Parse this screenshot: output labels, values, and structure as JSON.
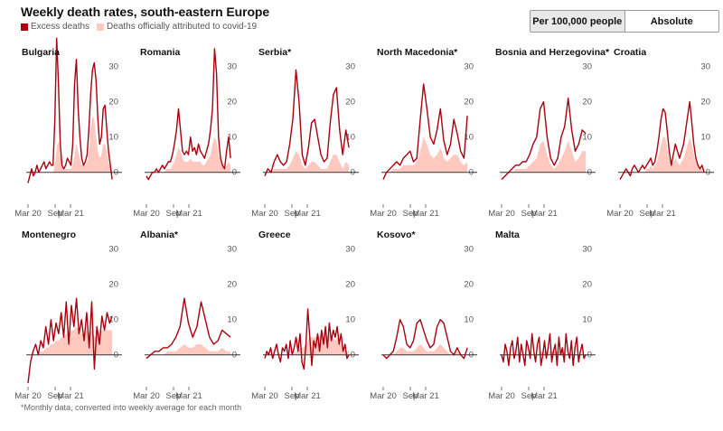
{
  "header": {
    "title": "Weekly death rates, south-eastern Europe",
    "legend": [
      {
        "label": "Excess deaths",
        "color": "#a8000e"
      },
      {
        "label": "Deaths officially attributed to covid-19",
        "color": "#ffc9c0"
      }
    ]
  },
  "toggle": {
    "options": [
      "Per 100,000 people",
      "Absolute"
    ],
    "selected": "Per 100,000 people"
  },
  "footnote": "*Monthly data, converted into weekly average for each month",
  "colors": {
    "excess": "#a8000e",
    "covid": "#ffc9c0",
    "axis": "#333333",
    "tick": "#555555"
  },
  "chart_data": [
    {
      "type": "line",
      "title": "Bulgaria",
      "x_ticks": [
        "Mar 20",
        "Sep",
        "Mar 21"
      ],
      "y_ticks": [
        0,
        10,
        20,
        30
      ],
      "ylim": [
        -8,
        35
      ],
      "series": [
        {
          "name": "Excess deaths",
          "values": [
            -3,
            -1,
            1,
            -1,
            0,
            2,
            0,
            1,
            2,
            3,
            1,
            2,
            3,
            2,
            2,
            15,
            38,
            25,
            8,
            2,
            1,
            2,
            4,
            3,
            2,
            8,
            25,
            32,
            18,
            10,
            4,
            2,
            3,
            5,
            12,
            22,
            29,
            31,
            26,
            15,
            8,
            10,
            18,
            19,
            12,
            6,
            2,
            -2
          ]
        },
        {
          "name": "Deaths officially attributed to covid-19",
          "values": [
            0,
            0,
            0,
            0,
            0,
            0,
            0,
            0,
            0,
            0,
            0,
            0,
            0,
            0,
            0,
            2,
            7,
            9,
            5,
            2,
            1,
            1,
            1,
            1,
            1,
            2,
            5,
            8,
            6,
            4,
            2,
            2,
            2,
            3,
            6,
            12,
            16,
            15,
            10,
            6,
            4,
            5,
            8,
            8,
            6,
            3,
            1,
            0
          ]
        }
      ]
    },
    {
      "type": "line",
      "title": "Romania",
      "x_ticks": [
        "Mar 20",
        "Sep",
        "Mar 21"
      ],
      "y_ticks": [
        0,
        10,
        20,
        30
      ],
      "ylim": [
        -8,
        35
      ],
      "series": [
        {
          "name": "Excess deaths",
          "values": [
            -1,
            -2,
            -1,
            0,
            0,
            1,
            0,
            1,
            2,
            1,
            2,
            3,
            3,
            5,
            8,
            12,
            18,
            12,
            6,
            5,
            6,
            5,
            10,
            6,
            7,
            5,
            8,
            6,
            5,
            4,
            6,
            8,
            12,
            18,
            35,
            28,
            10,
            4,
            2,
            1,
            6,
            10,
            4
          ]
        },
        {
          "name": "Deaths officially attributed to covid-19",
          "values": [
            0,
            0,
            0,
            0,
            0,
            0,
            0,
            0,
            0,
            0,
            1,
            1,
            1,
            2,
            3,
            5,
            7,
            6,
            4,
            3,
            3,
            3,
            4,
            3,
            3,
            3,
            3,
            3,
            2,
            2,
            3,
            4,
            5,
            8,
            10,
            9,
            5,
            3,
            2,
            1,
            2,
            3,
            2
          ]
        }
      ]
    },
    {
      "type": "line",
      "title": "Serbia*",
      "x_ticks": [
        "Mar 20",
        "Sep",
        "Mar 21"
      ],
      "y_ticks": [
        0,
        10,
        20,
        30
      ],
      "ylim": [
        -8,
        35
      ],
      "series": [
        {
          "name": "Excess deaths",
          "values": [
            -1,
            1,
            0,
            3,
            5,
            3,
            2,
            3,
            8,
            15,
            29,
            20,
            5,
            2,
            7,
            14,
            15,
            10,
            5,
            3,
            4,
            14,
            22,
            24,
            12,
            5,
            12,
            7
          ]
        },
        {
          "name": "Deaths officially attributed to covid-19",
          "values": [
            0,
            0,
            0,
            1,
            1,
            1,
            1,
            1,
            2,
            4,
            6,
            5,
            2,
            1,
            2,
            3,
            3,
            2,
            1,
            1,
            1,
            3,
            5,
            5,
            3,
            1,
            3,
            2
          ]
        }
      ]
    },
    {
      "type": "line",
      "title": "North Macedonia*",
      "x_ticks": [
        "Mar 20",
        "Sep",
        "Mar 21"
      ],
      "y_ticks": [
        0,
        10,
        20,
        30
      ],
      "ylim": [
        -8,
        35
      ],
      "series": [
        {
          "name": "Excess deaths",
          "values": [
            -2,
            0,
            1,
            2,
            3,
            2,
            4,
            5,
            6,
            3,
            4,
            15,
            25,
            18,
            10,
            8,
            12,
            18,
            9,
            5,
            8,
            15,
            11,
            6,
            4,
            16
          ]
        },
        {
          "name": "Deaths officially attributed to covid-19",
          "values": [
            0,
            0,
            0,
            1,
            1,
            1,
            2,
            2,
            2,
            2,
            3,
            6,
            10,
            8,
            5,
            4,
            5,
            7,
            4,
            3,
            4,
            5,
            5,
            3,
            2,
            3
          ]
        }
      ]
    },
    {
      "type": "line",
      "title": "Bosnia and Herzegovina*",
      "x_ticks": [
        "Mar 20",
        "Sep",
        "Mar 21"
      ],
      "y_ticks": [
        0,
        10,
        20,
        30
      ],
      "ylim": [
        -8,
        35
      ],
      "series": [
        {
          "name": "Excess deaths",
          "values": [
            -2,
            -1,
            0,
            1,
            2,
            2,
            3,
            3,
            5,
            8,
            10,
            18,
            20,
            10,
            4,
            2,
            4,
            10,
            13,
            21,
            12,
            6,
            8,
            12,
            11
          ]
        },
        {
          "name": "Deaths officially attributed to covid-19",
          "values": [
            0,
            0,
            0,
            0,
            1,
            1,
            1,
            1,
            2,
            3,
            4,
            8,
            9,
            5,
            2,
            1,
            2,
            4,
            6,
            9,
            6,
            3,
            4,
            6,
            6
          ]
        }
      ]
    },
    {
      "type": "line",
      "title": "Croatia",
      "x_ticks": [
        "Mar 20",
        "Sep",
        "Mar 21"
      ],
      "y_ticks": [
        0,
        10,
        20,
        30
      ],
      "ylim": [
        -8,
        35
      ],
      "series": [
        {
          "name": "Excess deaths",
          "values": [
            -2,
            -1,
            0,
            1,
            0,
            -1,
            1,
            2,
            1,
            0,
            1,
            2,
            1,
            2,
            3,
            4,
            2,
            3,
            6,
            10,
            15,
            18,
            17,
            12,
            6,
            2,
            5,
            8,
            6,
            4,
            6,
            8,
            12,
            16,
            20,
            14,
            8,
            4,
            2,
            1,
            2,
            0
          ]
        },
        {
          "name": "Deaths officially attributed to covid-19",
          "values": [
            0,
            0,
            0,
            0,
            0,
            0,
            0,
            0,
            0,
            0,
            0,
            0,
            0,
            1,
            1,
            2,
            1,
            2,
            3,
            5,
            8,
            10,
            10,
            7,
            4,
            2,
            3,
            4,
            3,
            2,
            3,
            4,
            6,
            8,
            10,
            8,
            5,
            3,
            2,
            1,
            1,
            0
          ]
        }
      ]
    },
    {
      "type": "line",
      "title": "Montenegro",
      "x_ticks": [
        "Mar 20",
        "Sep",
        "Mar 21"
      ],
      "y_ticks": [
        0,
        10,
        20,
        30
      ],
      "ylim": [
        -8,
        35
      ],
      "series": [
        {
          "name": "Excess deaths",
          "values": [
            -8,
            -2,
            1,
            3,
            0,
            4,
            2,
            8,
            3,
            10,
            4,
            9,
            6,
            12,
            5,
            15,
            3,
            14,
            8,
            16,
            6,
            10,
            4,
            12,
            2,
            15,
            -4,
            8,
            3,
            11,
            7,
            12,
            9,
            11
          ]
        },
        {
          "name": "Deaths officially attributed to covid-19",
          "values": [
            0,
            0,
            0,
            0,
            0,
            1,
            1,
            2,
            2,
            3,
            3,
            4,
            4,
            5,
            5,
            6,
            6,
            7,
            7,
            8,
            7,
            6,
            6,
            7,
            6,
            7,
            5,
            6,
            6,
            7,
            7,
            7,
            7,
            7
          ]
        }
      ]
    },
    {
      "type": "line",
      "title": "Albania*",
      "x_ticks": [
        "Mar 20",
        "Sep",
        "Mar 21"
      ],
      "y_ticks": [
        0,
        10,
        20,
        30
      ],
      "ylim": [
        -8,
        35
      ],
      "series": [
        {
          "name": "Excess deaths",
          "values": [
            -1,
            0,
            1,
            1,
            2,
            2,
            3,
            5,
            8,
            16,
            9,
            5,
            8,
            15,
            10,
            5,
            3,
            4,
            7,
            6,
            5
          ]
        },
        {
          "name": "Deaths officially attributed to covid-19",
          "values": [
            0,
            0,
            0,
            0,
            0,
            1,
            1,
            1,
            2,
            3,
            2,
            2,
            3,
            3,
            2,
            1,
            1,
            1,
            2,
            1,
            1
          ]
        }
      ]
    },
    {
      "type": "line",
      "title": "Greece",
      "x_ticks": [
        "Mar 20",
        "Sep",
        "Mar 21"
      ],
      "y_ticks": [
        0,
        10,
        20,
        30
      ],
      "ylim": [
        -8,
        35
      ],
      "series": [
        {
          "name": "Excess deaths",
          "values": [
            -1,
            1,
            0,
            2,
            -1,
            1,
            3,
            0,
            -2,
            2,
            1,
            3,
            -1,
            4,
            0,
            2,
            5,
            1,
            6,
            -2,
            -4,
            3,
            13,
            5,
            -3,
            4,
            2,
            6,
            1,
            7,
            3,
            8,
            2,
            9,
            4,
            7,
            5,
            8,
            3,
            6,
            1,
            3,
            -1,
            0
          ]
        },
        {
          "name": "Deaths officially attributed to covid-19",
          "values": [
            0,
            0,
            0,
            0,
            0,
            0,
            0,
            0,
            0,
            0,
            0,
            0,
            0,
            0,
            0,
            0,
            1,
            1,
            2,
            2,
            2,
            3,
            4,
            5,
            5,
            5,
            5,
            6,
            5,
            6,
            5,
            6,
            5,
            6,
            5,
            5,
            4,
            5,
            4,
            3,
            2,
            2,
            1,
            1
          ]
        }
      ]
    },
    {
      "type": "line",
      "title": "Kosovo*",
      "x_ticks": [
        "Mar 20",
        "Sep",
        "Mar 21"
      ],
      "y_ticks": [
        0,
        10,
        20,
        30
      ],
      "ylim": [
        -8,
        35
      ],
      "series": [
        {
          "name": "Excess deaths",
          "values": [
            0,
            -1,
            0,
            1,
            5,
            10,
            8,
            3,
            2,
            4,
            9,
            10,
            7,
            4,
            2,
            3,
            8,
            10,
            9,
            5,
            1,
            0,
            2,
            0,
            -1,
            2
          ]
        },
        {
          "name": "Deaths officially attributed to covid-19",
          "values": [
            0,
            0,
            0,
            0,
            1,
            2,
            2,
            1,
            1,
            1,
            2,
            3,
            2,
            1,
            1,
            1,
            2,
            3,
            2,
            1,
            0,
            0,
            1,
            0,
            0,
            0
          ]
        }
      ]
    },
    {
      "type": "line",
      "title": "Malta",
      "x_ticks": [
        "Mar 20",
        "Sep",
        "Mar 21"
      ],
      "y_ticks": [
        0,
        10,
        20,
        30
      ],
      "ylim": [
        -8,
        35
      ],
      "series": [
        {
          "name": "Excess deaths",
          "values": [
            0,
            -2,
            3,
            1,
            -3,
            2,
            4,
            -1,
            1,
            5,
            -2,
            3,
            0,
            -3,
            4,
            2,
            -1,
            6,
            1,
            -2,
            3,
            5,
            -3,
            0,
            4,
            -1,
            2,
            6,
            -2,
            1,
            3,
            -3,
            5,
            0,
            2,
            -2,
            6,
            1,
            -1,
            4,
            -3,
            2,
            5,
            -2,
            1,
            3,
            -1,
            0
          ]
        },
        {
          "name": "Deaths officially attributed to covid-19",
          "values": [
            0,
            0,
            0,
            0,
            0,
            0,
            0,
            0,
            0,
            0,
            0,
            0,
            0,
            0,
            0,
            0,
            0,
            0,
            0,
            0,
            0,
            1,
            1,
            1,
            1,
            1,
            1,
            1,
            1,
            1,
            1,
            1,
            1,
            1,
            1,
            1,
            0,
            0,
            0,
            0,
            0,
            0,
            0,
            0,
            0,
            0,
            0,
            0
          ]
        }
      ]
    }
  ]
}
